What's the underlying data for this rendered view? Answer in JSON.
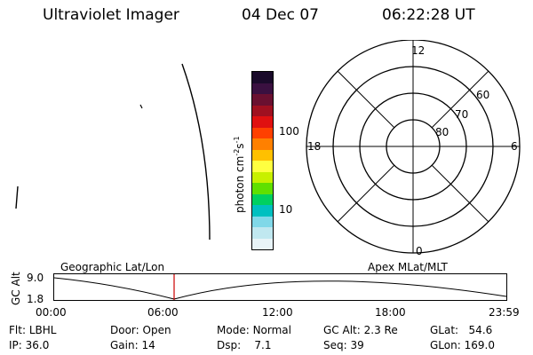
{
  "header": {
    "instrument": "Ultraviolet Imager",
    "date": "04 Dec 07",
    "time": "06:22:28 UT"
  },
  "colorbar": {
    "unit_label": "photon cm",
    "unit_exp1": "-2",
    "unit_s": "s",
    "unit_exp2": "-1",
    "tick_100": "100",
    "tick_10": "10",
    "colors": [
      "#1a0a2a",
      "#3a1040",
      "#6a1030",
      "#a01020",
      "#e01010",
      "#ff4000",
      "#ff8000",
      "#ffc000",
      "#ffff40",
      "#c8f000",
      "#60e000",
      "#00d060",
      "#00c0c0",
      "#80d8e8",
      "#c0e8f0",
      "#e8f4f8"
    ]
  },
  "polar": {
    "mlt_labels": {
      "top": "12",
      "left": "18",
      "right": "6",
      "bottom": "0"
    },
    "lat_labels": [
      "60",
      "70",
      "80"
    ],
    "line_color": "#000000"
  },
  "timeline": {
    "left_title": "Geographic Lat/Lon",
    "right_title": "Apex MLat/MLT",
    "y_axis_label": "GC Alt",
    "y_ticks": [
      "9.0",
      "1.8"
    ],
    "x_ticks": [
      "00:00",
      "06:00",
      "12:00",
      "18:00",
      "23:59"
    ],
    "marker_color": "#cc0000",
    "current_time": "06:22"
  },
  "info": {
    "filter_label": "Flt:",
    "filter_value": "LBHL",
    "ip_label": "IP:",
    "ip_value": "36.0",
    "door_label": "Door:",
    "door_value": "Open",
    "gain_label": "Gain:",
    "gain_value": "14",
    "mode_label": "Mode:",
    "mode_value": "Normal",
    "dsp_label": "Dsp:",
    "dsp_value": "7.1",
    "gcalt_label": "GC Alt:",
    "gcalt_value": "2.3 Re",
    "seq_label": "Seq:",
    "seq_value": "39",
    "glat_label": "GLat:",
    "glat_value": "54.6",
    "glon_label": "GLon:",
    "glon_value": "169.0"
  }
}
